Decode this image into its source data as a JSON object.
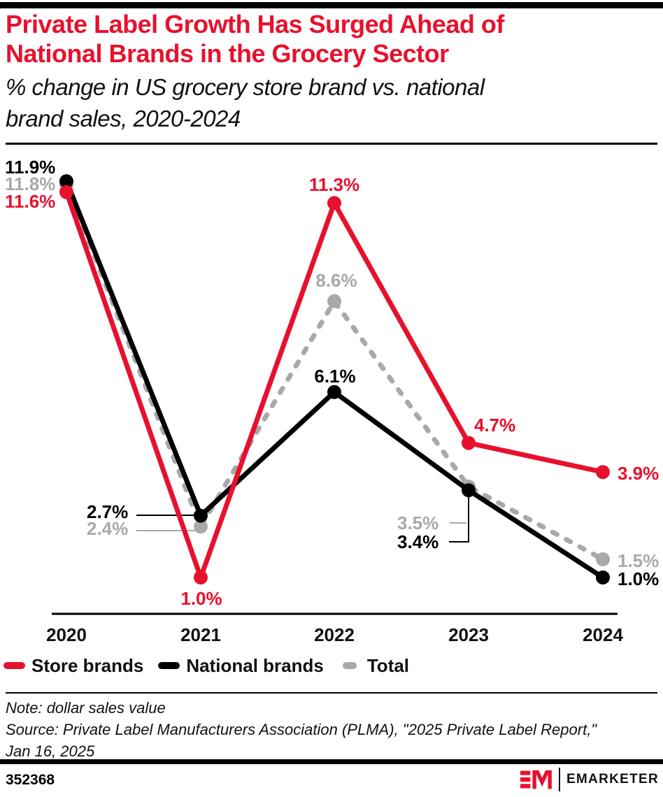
{
  "header": {
    "title_line1": "Private Label Growth Has Surged Ahead of",
    "title_line2": "National Brands in the Grocery Sector",
    "subtitle_line1": "% change in US grocery store brand vs. national",
    "subtitle_line2": "brand sales, 2020-2024"
  },
  "chart_data": {
    "type": "line",
    "title": "Private Label Growth Has Surged Ahead of National Brands in the Grocery Sector",
    "subtitle": "% change in US grocery store brand vs. national brand sales, 2020-2024",
    "categories": [
      "2020",
      "2021",
      "2022",
      "2023",
      "2024"
    ],
    "series": [
      {
        "name": "Store brands",
        "color": "#e8112d",
        "dash": false,
        "values": [
          11.6,
          1.0,
          11.3,
          4.7,
          3.9
        ]
      },
      {
        "name": "National brands",
        "color": "#000000",
        "dash": false,
        "values": [
          11.9,
          2.7,
          6.1,
          3.4,
          1.0
        ]
      },
      {
        "name": "Total",
        "color": "#a7a9aa",
        "dash": true,
        "values": [
          11.8,
          2.4,
          8.6,
          3.5,
          1.5
        ]
      }
    ],
    "value_suffix": "%",
    "ylim": [
      0,
      13
    ],
    "grid": false,
    "legend_position": "bottom"
  },
  "footer": {
    "note": "Note: dollar sales value",
    "source_line1": "Source: Private Label Manufacturers Association (PLMA), \"2025 Private Label Report,\"",
    "source_line2": "Jan 16, 2025",
    "chart_id": "352368",
    "brand": "EMARKETER"
  }
}
